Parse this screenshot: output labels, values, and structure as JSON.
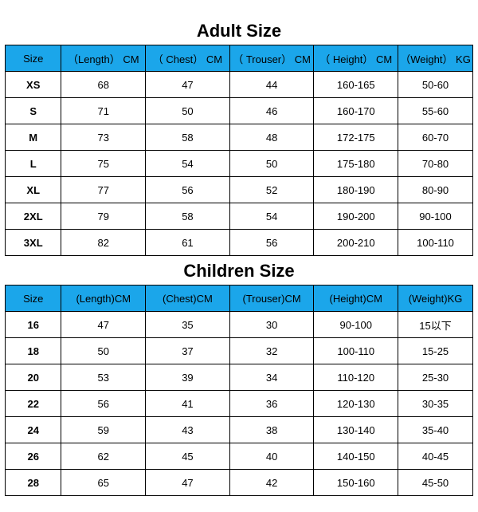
{
  "header_bg": "#1ba6ea",
  "border_color": "#000000",
  "adult": {
    "title": "Adult Size",
    "columns": [
      "Size",
      "（Length） CM",
      "（ Chest） CM",
      "（ Trouser） CM",
      "（ Height） CM",
      "（Weight） KG"
    ],
    "rows": [
      [
        "XS",
        "68",
        "47",
        "44",
        "160-165",
        "50-60"
      ],
      [
        "S",
        "71",
        "50",
        "46",
        "160-170",
        "55-60"
      ],
      [
        "M",
        "73",
        "58",
        "48",
        "172-175",
        "60-70"
      ],
      [
        "L",
        "75",
        "54",
        "50",
        "175-180",
        "70-80"
      ],
      [
        "XL",
        "77",
        "56",
        "52",
        "180-190",
        "80-90"
      ],
      [
        "2XL",
        "79",
        "58",
        "54",
        "190-200",
        "90-100"
      ],
      [
        "3XL",
        "82",
        "61",
        "56",
        "200-210",
        "100-110"
      ]
    ]
  },
  "children": {
    "title": "Children Size",
    "columns": [
      "Size",
      "(Length)CM",
      "(Chest)CM",
      "(Trouser)CM",
      "(Height)CM",
      "(Weight)KG"
    ],
    "rows": [
      [
        "16",
        "47",
        "35",
        "30",
        "90-100",
        "15以下"
      ],
      [
        "18",
        "50",
        "37",
        "32",
        "100-110",
        "15-25"
      ],
      [
        "20",
        "53",
        "39",
        "34",
        "110-120",
        "25-30"
      ],
      [
        "22",
        "56",
        "41",
        "36",
        "120-130",
        "30-35"
      ],
      [
        "24",
        "59",
        "43",
        "38",
        "130-140",
        "35-40"
      ],
      [
        "26",
        "62",
        "45",
        "40",
        "140-150",
        "40-45"
      ],
      [
        "28",
        "65",
        "47",
        "42",
        "150-160",
        "45-50"
      ]
    ]
  }
}
